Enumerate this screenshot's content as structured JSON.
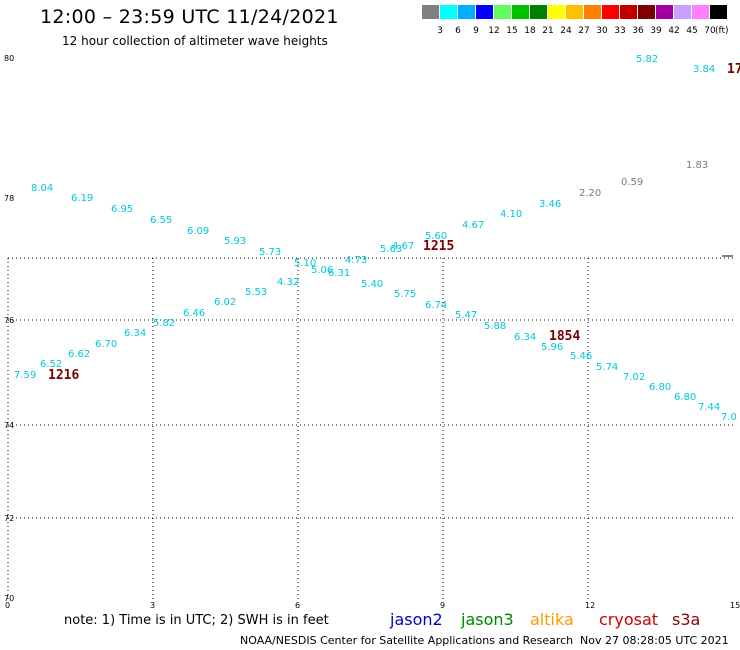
{
  "header": {
    "title": "12:00 – 23:59 UTC 11/24/2021",
    "subtitle": "12 hour collection of altimeter wave heights"
  },
  "color_scale": {
    "labels": [
      "3",
      "6",
      "9",
      "12",
      "15",
      "18",
      "21",
      "24",
      "27",
      "30",
      "33",
      "36",
      "39",
      "42",
      "45",
      "70"
    ],
    "unit": "(ft)",
    "colors": [
      "#808080",
      "#00ffff",
      "#00b0ff",
      "#0000ff",
      "#60ff60",
      "#00c000",
      "#008000",
      "#ffff00",
      "#ffc000",
      "#ff8000",
      "#ff0000",
      "#c00000",
      "#800000",
      "#a000a0",
      "#c8a0ff",
      "#ff80ff",
      "#000000"
    ]
  },
  "axes": {
    "lat_labels": [
      "80",
      "78",
      "76",
      "74",
      "72",
      "70"
    ],
    "lon_labels": [
      "0",
      "3",
      "6",
      "9",
      "12",
      "15"
    ]
  },
  "map": {
    "passes": [
      {
        "time": "1216",
        "color": "#00c8d8",
        "points": [
          {
            "v": "7.59"
          },
          {
            "v": "6.52"
          },
          {
            "v": "6.62"
          },
          {
            "v": "6.70"
          },
          {
            "v": "6.34"
          },
          {
            "v": "5.82"
          },
          {
            "v": "6.46"
          },
          {
            "v": "6.02"
          },
          {
            "v": "5.53"
          },
          {
            "v": "4.32"
          },
          {
            "v": "5.06"
          },
          {
            "v": "4.73"
          },
          {
            "v": "5.63"
          },
          {
            "v": "4.67"
          },
          {
            "v": "5.60"
          },
          {
            "v": "4.67"
          },
          {
            "v": "4.10"
          },
          {
            "v": "3.46"
          }
        ]
      },
      {
        "time": "",
        "color": "#7a7a7a",
        "points": [
          {
            "v": "2.20"
          },
          {
            "v": "0.59"
          },
          {
            "v": "1.83"
          }
        ]
      },
      {
        "time": "1215",
        "color": "#00c8d8",
        "points": [
          {
            "v": "8.04"
          },
          {
            "v": "6.19"
          },
          {
            "v": "6.95"
          },
          {
            "v": "6.55"
          },
          {
            "v": "6.09"
          },
          {
            "v": "5.93"
          },
          {
            "v": "5.73"
          },
          {
            "v": "5.10"
          },
          {
            "v": "6.31"
          },
          {
            "v": "5.40"
          },
          {
            "v": "5.75"
          },
          {
            "v": "6.74"
          },
          {
            "v": "5.47"
          },
          {
            "v": "5.88"
          },
          {
            "v": "6.34"
          },
          {
            "v": "5.96"
          },
          {
            "v": "5.46"
          },
          {
            "v": "5.74"
          },
          {
            "v": "7.02"
          },
          {
            "v": "6.80"
          },
          {
            "v": "6.80"
          },
          {
            "v": "7.44"
          },
          {
            "v": "7.0"
          }
        ]
      },
      {
        "time": "1854",
        "color": "#00c8d8",
        "points": []
      },
      {
        "time": "17",
        "color": "#00c8d8",
        "points": [
          {
            "v": "5.82"
          },
          {
            "v": "3.84"
          }
        ]
      }
    ]
  },
  "footer": {
    "note": "note:  1) Time is in UTC;  2) SWH is in feet",
    "satellites": [
      {
        "name": "jason2",
        "color": "#0000cc"
      },
      {
        "name": "jason3",
        "color": "#008800"
      },
      {
        "name": "altika",
        "color": "#ff9900"
      },
      {
        "name": "cryosat",
        "color": "#cc0000"
      },
      {
        "name": "s3a",
        "color": "#880000"
      }
    ],
    "credit": "NOAA/NESDIS Center for Satellite Applications and Research",
    "timestamp": "Nov 27 08:28:05 UTC 2021"
  }
}
